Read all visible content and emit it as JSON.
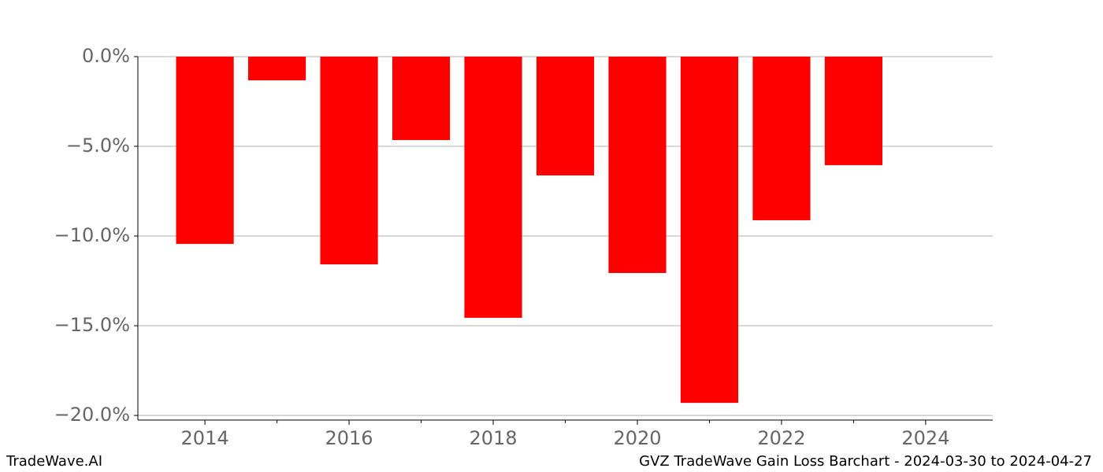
{
  "chart_data": {
    "type": "bar",
    "x": [
      2014,
      2015,
      2016,
      2017,
      2018,
      2019,
      2020,
      2021,
      2022,
      2023
    ],
    "values": [
      -10.44,
      -1.32,
      -11.58,
      -4.65,
      -14.56,
      -6.62,
      -12.06,
      -19.3,
      -9.12,
      -6.05
    ],
    "color": "#ff0000",
    "bar_width": 0.8,
    "xlim": [
      2013.07,
      2024.93
    ],
    "xticks": [
      2014,
      2016,
      2018,
      2020,
      2022,
      2024
    ],
    "xminor_ticks": [
      2015,
      2017,
      2019,
      2021,
      2023
    ],
    "ylim": [
      -20.26,
      0
    ],
    "yticks": [
      {
        "value": 0,
        "label": "0.0%"
      },
      {
        "value": -5,
        "label": "−5.0%"
      },
      {
        "value": -10,
        "label": "−10.0%"
      },
      {
        "value": -15,
        "label": "−15.0%"
      },
      {
        "value": -20,
        "label": "−20.0%"
      }
    ],
    "grid": true
  },
  "footer": {
    "left": "TradeWave.AI",
    "right": "GVZ TradeWave Gain Loss Barchart - 2024-03-30 to 2024-04-27"
  }
}
